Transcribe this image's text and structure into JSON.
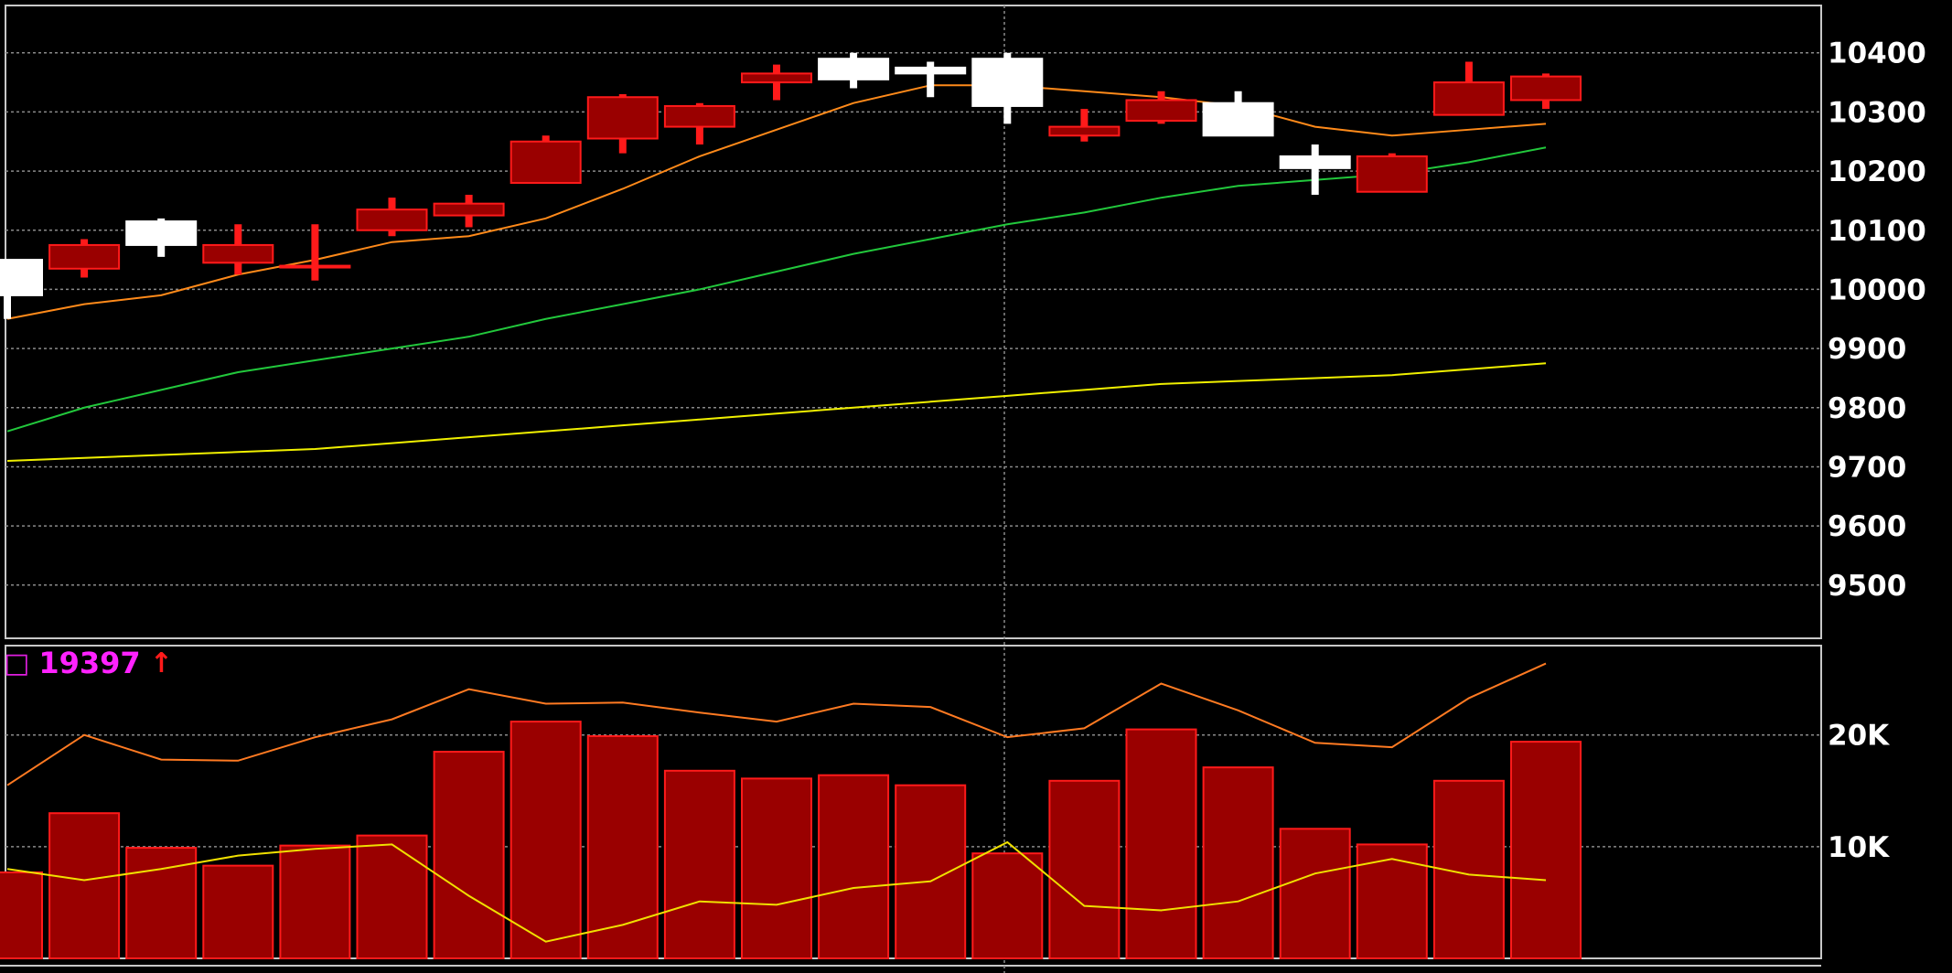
{
  "colors": {
    "background": "#000000",
    "grid": "#8a8a8a",
    "panel_border": "#c8c8c8",
    "axis_text": "#ffffff",
    "candle_up_fill": "#9a0000",
    "candle_up_edge": "#ff1a1a",
    "candle_down": "#ffffff",
    "ma_short": "#ff8a1a",
    "ma_mid": "#22c83c",
    "ma_long": "#f0f000",
    "volume_bar_fill": "#9a0000",
    "volume_bar_edge": "#ff1a1a",
    "vol_ma_long": "#ff7a22",
    "vol_ma_short": "#f0e000",
    "vol_value_text": "#ff22ff",
    "arrow": "#ff1a1a"
  },
  "volume_header": {
    "box_icon": "□",
    "value": "19397",
    "arrow_icon": "↑"
  },
  "chart_data": [
    {
      "type": "candlestick",
      "title": "",
      "xlabel": "",
      "ylabel": "",
      "ylim": [
        9410,
        10480
      ],
      "grid": true,
      "yticks": [
        9500,
        9600,
        9700,
        9800,
        9900,
        10000,
        10100,
        10200,
        10300,
        10400
      ],
      "ytick_labels": [
        "9500",
        "9600",
        "9700",
        "9800",
        "9900",
        "10000",
        "10100",
        "10200",
        "10300",
        "10400"
      ],
      "candles": [
        {
          "open": 10050,
          "close": 9990,
          "high": 10050,
          "low": 9950
        },
        {
          "open": 10035,
          "close": 10075,
          "high": 10085,
          "low": 10020
        },
        {
          "open": 10115,
          "close": 10075,
          "high": 10120,
          "low": 10055
        },
        {
          "open": 10045,
          "close": 10075,
          "high": 10110,
          "low": 10025
        },
        {
          "open": 10040,
          "close": 10040,
          "high": 10110,
          "low": 10015
        },
        {
          "open": 10100,
          "close": 10135,
          "high": 10155,
          "low": 10090
        },
        {
          "open": 10125,
          "close": 10145,
          "high": 10160,
          "low": 10105
        },
        {
          "open": 10180,
          "close": 10250,
          "high": 10260,
          "low": 10180
        },
        {
          "open": 10255,
          "close": 10325,
          "high": 10330,
          "low": 10230
        },
        {
          "open": 10275,
          "close": 10310,
          "high": 10315,
          "low": 10245
        },
        {
          "open": 10350,
          "close": 10365,
          "high": 10380,
          "low": 10320
        },
        {
          "open": 10390,
          "close": 10355,
          "high": 10400,
          "low": 10340
        },
        {
          "open": 10375,
          "close": 10365,
          "high": 10385,
          "low": 10325
        },
        {
          "open": 10390,
          "close": 10310,
          "high": 10400,
          "low": 10280
        },
        {
          "open": 10260,
          "close": 10275,
          "high": 10305,
          "low": 10250
        },
        {
          "open": 10285,
          "close": 10320,
          "high": 10335,
          "low": 10280
        },
        {
          "open": 10315,
          "close": 10260,
          "high": 10335,
          "low": 10260
        },
        {
          "open": 10225,
          "close": 10205,
          "high": 10245,
          "low": 10160
        },
        {
          "open": 10165,
          "close": 10225,
          "high": 10230,
          "low": 10165
        },
        {
          "open": 10295,
          "close": 10350,
          "high": 10385,
          "low": 10295
        },
        {
          "open": 10320,
          "close": 10360,
          "high": 10365,
          "low": 10305
        }
      ],
      "series": [
        {
          "values": [
            9950,
            9975,
            9990,
            10025,
            10050,
            10080,
            10090,
            10120,
            10170,
            10225,
            10270,
            10315,
            10345,
            10345,
            10335,
            10325,
            10310,
            10275,
            10260,
            10270,
            10280
          ]
        },
        {
          "values": [
            9760,
            9800,
            9830,
            9860,
            9880,
            9900,
            9920,
            9950,
            9975,
            10000,
            10030,
            10060,
            10085,
            10110,
            10130,
            10155,
            10175,
            10185,
            10195,
            10215,
            10240
          ]
        },
        {
          "values": [
            9710,
            9715,
            9720,
            9725,
            9730,
            9740,
            9750,
            9760,
            9770,
            9780,
            9790,
            9800,
            9810,
            9820,
            9830,
            9840,
            9845,
            9850,
            9855,
            9865,
            9875
          ]
        }
      ]
    },
    {
      "type": "bar",
      "title": "",
      "xlabel": "",
      "ylabel": "",
      "ylim": [
        0,
        28000
      ],
      "grid": true,
      "yticks": [
        10000,
        20000
      ],
      "ytick_labels": [
        "10K",
        "20K"
      ],
      "values": [
        7700,
        13000,
        9900,
        8300,
        10100,
        11000,
        18500,
        21200,
        19900,
        16800,
        16100,
        16400,
        15500,
        9400,
        15900,
        20500,
        17100,
        11600,
        10200,
        15900,
        19397
      ],
      "series": [
        {
          "values": [
            15500,
            20000,
            17800,
            17700,
            19800,
            21400,
            24100,
            22800,
            22900,
            22000,
            21200,
            22800,
            22500,
            19800,
            20600,
            24600,
            22200,
            19300,
            18900,
            23300,
            26400
          ]
        },
        {
          "values": [
            8000,
            7000,
            8000,
            9200,
            9800,
            10200,
            5600,
            1500,
            3000,
            5100,
            4800,
            6300,
            6900,
            10400,
            4700,
            4300,
            5100,
            7600,
            8900,
            7500,
            7000
          ]
        }
      ]
    }
  ]
}
